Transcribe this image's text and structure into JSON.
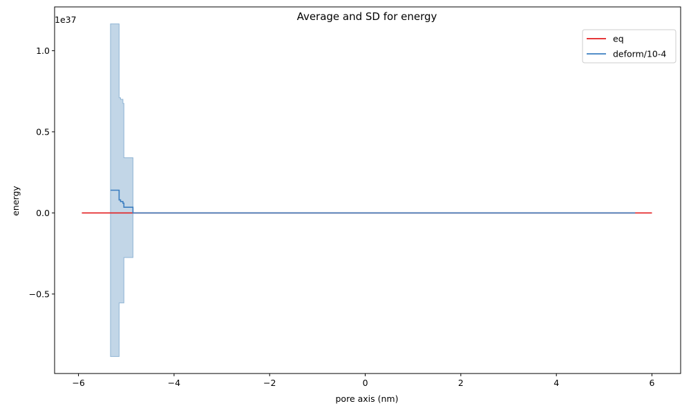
{
  "chart_data": {
    "type": "line",
    "title": "Average and SD for energy",
    "xlabel": "pore axis (nm)",
    "ylabel": "energy",
    "y_offset_label": "1e37",
    "y_scale_factor": 1e+37,
    "xlim": [
      -6.5,
      6.6
    ],
    "ylim": [
      -0.99,
      1.27
    ],
    "xticks": [
      -6,
      -4,
      -2,
      0,
      2,
      4,
      6
    ],
    "xtick_labels": [
      "−6",
      "−4",
      "−2",
      "0",
      "2",
      "4",
      "6"
    ],
    "yticks": [
      -0.5,
      0.0,
      0.5,
      1.0
    ],
    "ytick_labels": [
      "−0.5",
      "0.0",
      "0.5",
      "1.0"
    ],
    "grid": false,
    "legend_position": "top-right",
    "series": [
      {
        "name": "eq",
        "color": "#e31a1c",
        "x": [
          -5.93,
          6.0
        ],
        "y": [
          0.0,
          0.0
        ]
      },
      {
        "name": "deform/10-4",
        "color": "#3a7dc0",
        "step": true,
        "x": [
          -5.33,
          -5.15,
          -5.12,
          -5.07,
          -5.05,
          -4.88,
          -4.86,
          5.65
        ],
        "y": [
          0.14,
          0.08,
          0.07,
          0.06,
          0.035,
          0.035,
          0.0,
          0.0
        ],
        "sd_band": {
          "color": "#8fb4d4",
          "x": [
            -5.33,
            -5.15,
            -5.12,
            -5.07,
            -5.05,
            -4.88,
            -4.86,
            5.65
          ],
          "upper": [
            1.165,
            0.71,
            0.7,
            0.675,
            0.34,
            0.34,
            0.0,
            0.0
          ],
          "lower": [
            -0.885,
            -0.555,
            -0.555,
            -0.555,
            -0.275,
            -0.275,
            0.0,
            0.0
          ]
        }
      }
    ]
  }
}
